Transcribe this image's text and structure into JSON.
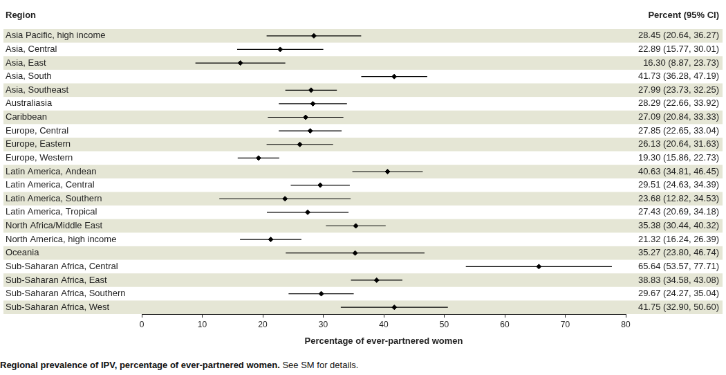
{
  "chart_data": {
    "type": "forest",
    "orientation": "horizontal",
    "title": "Regional prevalence of IPV, percentage of ever-partnered women.",
    "subtitle": "See SM for details.",
    "y_label": "Region",
    "x_label": "Percentage of ever-partnered women",
    "value_labels_title": "Percent (95% CI)",
    "categories": [
      "Asia Pacific, high income",
      "Asia, Central",
      "Asia, East",
      "Asia, South",
      "Asia, Southeast",
      "Australiasia",
      "Caribbean",
      "Europe, Central",
      "Europe, Eastern",
      "Europe, Western",
      "Latin America, Andean",
      "Latin America, Central",
      "Latin America, Southern",
      "Latin America, Tropical",
      "North Africa/Middle East",
      "North America, high income",
      "Oceania",
      "Sub-Saharan Africa, Central",
      "Sub-Saharan Africa, East",
      "Sub-Saharan Africa, Southern",
      "Sub-Saharan Africa, West"
    ],
    "values": [
      28.45,
      22.89,
      16.3,
      41.73,
      27.99,
      28.29,
      27.09,
      27.85,
      26.13,
      19.3,
      40.63,
      29.51,
      23.68,
      27.43,
      35.38,
      21.32,
      35.27,
      65.64,
      38.83,
      29.67,
      41.75
    ],
    "lower": [
      20.64,
      15.77,
      8.87,
      36.28,
      23.73,
      22.66,
      20.84,
      22.65,
      20.64,
      15.86,
      34.81,
      24.63,
      12.82,
      20.69,
      30.44,
      16.24,
      23.8,
      53.57,
      34.58,
      24.27,
      32.9
    ],
    "upper": [
      36.27,
      30.01,
      23.73,
      47.19,
      32.25,
      33.92,
      33.33,
      33.04,
      31.63,
      22.73,
      46.45,
      34.39,
      34.53,
      34.18,
      40.32,
      26.39,
      46.74,
      77.71,
      43.08,
      35.04,
      50.6
    ],
    "value_labels": [
      "28.45 (20.64, 36.27)",
      "22.89 (15.77, 30.01)",
      "16.30 (8.87, 23.73)",
      "41.73 (36.28, 47.19)",
      "27.99 (23.73, 32.25)",
      "28.29 (22.66, 33.92)",
      "27.09 (20.84, 33.33)",
      "27.85 (22.65, 33.04)",
      "26.13 (20.64, 31.63)",
      "19.30 (15.86, 22.73)",
      "40.63 (34.81, 46.45)",
      "29.51 (24.63, 34.39)",
      "23.68 (12.82, 34.53)",
      "27.43 (20.69, 34.18)",
      "35.38 (30.44, 40.32)",
      "21.32 (16.24, 26.39)",
      "35.27 (23.80, 46.74)",
      "65.64 (53.57, 77.71)",
      "38.83 (34.58, 43.08)",
      "29.67 (24.27, 35.04)",
      "41.75 (32.90, 50.60)"
    ],
    "xlim": [
      0,
      80
    ],
    "xticks": [
      0,
      10,
      20,
      30,
      40,
      50,
      60,
      70,
      80
    ],
    "grid": false,
    "color": "#000000",
    "marker": "diamond"
  }
}
